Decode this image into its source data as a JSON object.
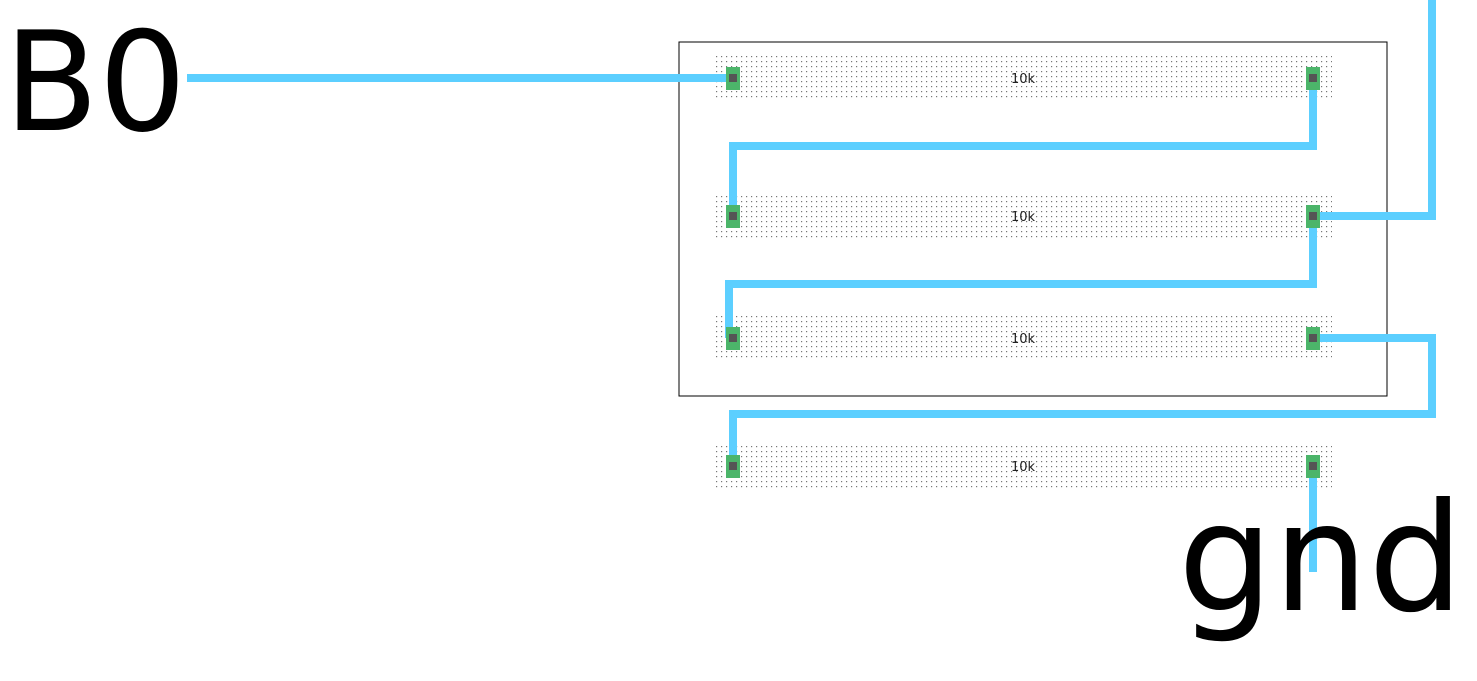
{
  "nets": {
    "input": "B0",
    "ground": "gnd"
  },
  "resistors": [
    {
      "value": "10k"
    },
    {
      "value": "10k"
    },
    {
      "value": "10k"
    },
    {
      "value": "10k"
    }
  ],
  "colors": {
    "wire": "#5ccfff",
    "pad": "#4cb56a",
    "pad_center": "#555555",
    "body_dots": "#555555",
    "box": "#000000"
  }
}
